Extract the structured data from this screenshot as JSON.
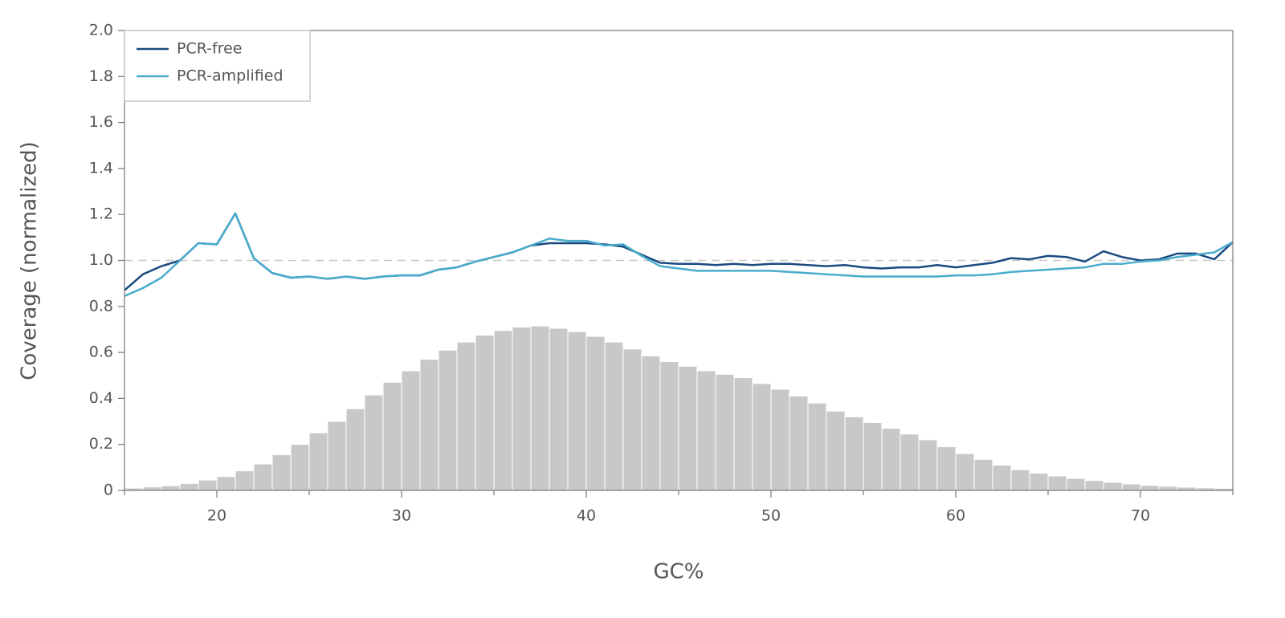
{
  "chart_data": {
    "type": "line",
    "xlabel": "GC%",
    "ylabel": "Coverage (normalized)",
    "xlim": [
      15,
      75
    ],
    "ylim": [
      0,
      2
    ],
    "xticks": [
      20,
      30,
      40,
      50,
      60,
      70
    ],
    "xminorticks": [
      15,
      25,
      35,
      45,
      55,
      65,
      75
    ],
    "yticks": [
      0,
      {
        "value": 0.2,
        "label": "0.2"
      },
      {
        "value": 0.4,
        "label": "0.4"
      },
      {
        "value": 0.6,
        "label": "0.6"
      },
      {
        "value": 0.8,
        "label": "0.8"
      },
      {
        "value": 1,
        "label": "1.0"
      },
      {
        "value": 1.2,
        "label": "1.2"
      },
      {
        "value": 1.4,
        "label": "1.4"
      },
      {
        "value": 1.6,
        "label": "1.6"
      },
      {
        "value": 1.8,
        "label": "1.8"
      },
      {
        "value": 2,
        "label": "2.0"
      }
    ],
    "reference_line": 1,
    "legend": "top-left",
    "x": [
      15,
      16,
      17,
      18,
      19,
      20,
      21,
      22,
      23,
      24,
      25,
      26,
      27,
      28,
      29,
      30,
      31,
      32,
      33,
      34,
      35,
      36,
      37,
      38,
      39,
      40,
      41,
      42,
      43,
      44,
      45,
      46,
      47,
      48,
      49,
      50,
      51,
      52,
      53,
      54,
      55,
      56,
      57,
      58,
      59,
      60,
      61,
      62,
      63,
      64,
      65,
      66,
      67,
      68,
      69,
      70,
      71,
      72,
      73,
      74,
      75
    ],
    "series": [
      {
        "name": "PCR-free",
        "color": "#1a4a80",
        "values": [
          0.87,
          0.94,
          0.975,
          1.0,
          1.075,
          1.07,
          1.205,
          1.01,
          0.945,
          0.925,
          0.93,
          0.92,
          0.93,
          0.92,
          0.93,
          0.935,
          0.935,
          0.96,
          0.97,
          0.995,
          1.015,
          1.035,
          1.065,
          1.075,
          1.075,
          1.075,
          1.07,
          1.06,
          1.025,
          0.99,
          0.985,
          0.985,
          0.98,
          0.985,
          0.98,
          0.985,
          0.985,
          0.98,
          0.975,
          0.98,
          0.97,
          0.965,
          0.97,
          0.97,
          0.98,
          0.97,
          0.98,
          0.99,
          1.01,
          1.005,
          1.02,
          1.015,
          0.995,
          1.04,
          1.015,
          1.0,
          1.005,
          1.03,
          1.03,
          1.005,
          1.08
        ]
      },
      {
        "name": "PCR-amplified",
        "color": "#4aaccc",
        "values": [
          0.845,
          0.88,
          0.925,
          1.0,
          1.075,
          1.07,
          1.205,
          1.01,
          0.945,
          0.925,
          0.93,
          0.92,
          0.93,
          0.92,
          0.93,
          0.935,
          0.935,
          0.96,
          0.97,
          0.995,
          1.015,
          1.035,
          1.065,
          1.095,
          1.085,
          1.085,
          1.065,
          1.07,
          1.02,
          0.975,
          0.965,
          0.955,
          0.955,
          0.955,
          0.955,
          0.955,
          0.95,
          0.945,
          0.94,
          0.935,
          0.93,
          0.93,
          0.93,
          0.93,
          0.93,
          0.935,
          0.935,
          0.94,
          0.95,
          0.955,
          0.96,
          0.965,
          0.97,
          0.985,
          0.985,
          0.995,
          1.0,
          1.015,
          1.025,
          1.035,
          1.08
        ]
      }
    ],
    "histogram": {
      "type": "histogram",
      "color": "#c8c8c9",
      "bins": [
        15,
        16,
        17,
        18,
        19,
        20,
        21,
        22,
        23,
        24,
        25,
        26,
        27,
        28,
        29,
        30,
        31,
        32,
        33,
        34,
        35,
        36,
        37,
        38,
        39,
        40,
        41,
        42,
        43,
        44,
        45,
        46,
        47,
        48,
        49,
        50,
        51,
        52,
        53,
        54,
        55,
        56,
        57,
        58,
        59,
        60,
        61,
        62,
        63,
        64,
        65,
        66,
        67,
        68,
        69,
        70,
        71,
        72,
        73,
        74,
        75
      ],
      "values": [
        0.01,
        0.015,
        0.02,
        0.03,
        0.045,
        0.06,
        0.085,
        0.115,
        0.155,
        0.2,
        0.25,
        0.3,
        0.355,
        0.415,
        0.47,
        0.52,
        0.57,
        0.61,
        0.645,
        0.675,
        0.695,
        0.71,
        0.715,
        0.705,
        0.69,
        0.67,
        0.645,
        0.615,
        0.585,
        0.56,
        0.54,
        0.52,
        0.505,
        0.49,
        0.465,
        0.44,
        0.41,
        0.38,
        0.345,
        0.32,
        0.295,
        0.27,
        0.245,
        0.22,
        0.19,
        0.16,
        0.135,
        0.11,
        0.09,
        0.075,
        0.063,
        0.052,
        0.043,
        0.035,
        0.028,
        0.022,
        0.018,
        0.014,
        0.011,
        0.009
      ]
    }
  }
}
